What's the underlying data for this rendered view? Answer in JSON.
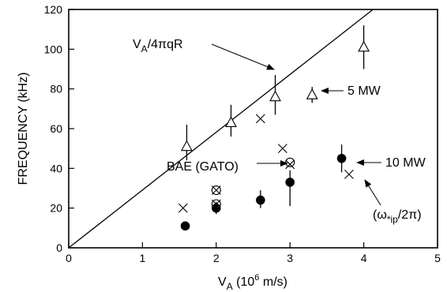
{
  "chart_data": {
    "type": "scatter",
    "title": "",
    "xlabel_main": "V",
    "xlabel_sub": "A",
    "xlabel_rest": " (10",
    "xlabel_exp": "6",
    "xlabel_tail": " m/s)",
    "ylabel": "FREQUENCY (kHz)",
    "xlim": [
      0,
      5
    ],
    "ylim": [
      0,
      120
    ],
    "xticks": [
      "0",
      "1",
      "2",
      "3",
      "4",
      "5"
    ],
    "yticks": [
      "0",
      "20",
      "40",
      "60",
      "80",
      "100",
      "120"
    ],
    "grid": false,
    "line": {
      "label_v": "V",
      "label_sub": "A",
      "label_rest": "/4πqR",
      "points": [
        [
          0,
          0
        ],
        [
          4.125,
          120
        ]
      ]
    },
    "series": [
      {
        "name": "5 MW",
        "marker": "open-triangle",
        "points": [
          {
            "x": 1.6,
            "y": 51,
            "err": [
              44,
              62
            ]
          },
          {
            "x": 2.2,
            "y": 63,
            "err": [
              56,
              72
            ]
          },
          {
            "x": 2.8,
            "y": 76,
            "err": [
              67,
              87
            ]
          },
          {
            "x": 3.3,
            "y": 77,
            "err": [
              73,
              81
            ]
          },
          {
            "x": 4.0,
            "y": 101,
            "err": [
              90,
              112
            ]
          }
        ]
      },
      {
        "name": "10 MW",
        "marker": "filled-circle",
        "points": [
          {
            "x": 1.58,
            "y": 11,
            "err": [
              10,
              13
            ]
          },
          {
            "x": 2.0,
            "y": 20,
            "err": [
              17,
              23
            ]
          },
          {
            "x": 2.6,
            "y": 24,
            "err": [
              20,
              29
            ]
          },
          {
            "x": 3.0,
            "y": 33,
            "err": [
              21,
              39
            ]
          },
          {
            "x": 3.7,
            "y": 45,
            "err": [
              38,
              52
            ]
          }
        ]
      },
      {
        "name": "(ω*ip/2π)",
        "marker": "cross",
        "points": [
          {
            "x": 1.55,
            "y": 20
          },
          {
            "x": 2.0,
            "y": 29
          },
          {
            "x": 2.0,
            "y": 22
          },
          {
            "x": 2.6,
            "y": 65
          },
          {
            "x": 2.9,
            "y": 50
          },
          {
            "x": 3.0,
            "y": 42
          },
          {
            "x": 3.8,
            "y": 37
          }
        ]
      },
      {
        "name": "BAE (GATO)",
        "marker": "open-circle",
        "points": [
          {
            "x": 2.0,
            "y": 29
          },
          {
            "x": 2.0,
            "y": 22
          },
          {
            "x": 3.0,
            "y": 43
          }
        ]
      }
    ],
    "annotations": {
      "mw5": "5 MW",
      "mw10": "10 MW",
      "bae": "BAE (GATO)",
      "omega_open": "(ω",
      "omega_sub": "*ip",
      "omega_close": "/2π)"
    }
  }
}
